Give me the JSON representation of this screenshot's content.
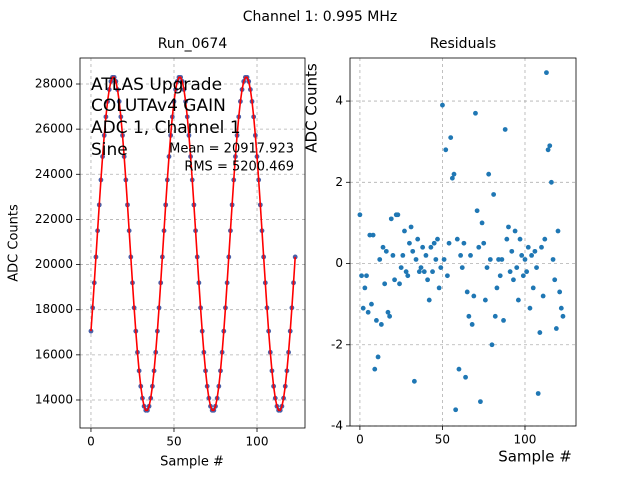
{
  "title": "Channel 1: 0.995 MHz",
  "chart_data": [
    {
      "type": "scatter",
      "title": "Run_0674",
      "x_label": "Sample #",
      "y_label": "ADC Counts",
      "annotations": [
        "ATLAS Upgrade",
        "COLUTAv4 GAIN",
        "ADC 1, Channel 1",
        "Sine",
        "Mean = 20917.923",
        "RMS = 5200.469"
      ],
      "x": [
        0,
        1,
        2,
        3,
        4,
        5,
        6,
        7,
        8,
        9,
        10,
        11,
        12,
        13,
        14,
        15,
        16,
        17,
        18,
        19,
        20,
        21,
        22,
        23,
        24,
        25,
        26,
        27,
        28,
        29,
        30,
        31,
        32,
        33,
        34,
        35,
        36,
        37,
        38,
        39,
        40,
        41,
        42,
        43,
        44,
        45,
        46,
        47,
        48,
        49,
        50,
        51,
        52,
        53,
        54,
        55,
        56,
        57,
        58,
        59,
        60,
        61,
        62,
        63,
        64,
        65,
        66,
        67,
        68,
        69,
        70,
        71,
        72,
        73,
        74,
        75,
        76,
        77,
        78,
        79,
        80,
        81,
        82,
        83,
        84,
        85,
        86,
        87,
        88,
        89,
        90,
        91,
        92,
        93,
        94,
        95,
        96,
        97,
        98,
        99,
        100,
        101,
        102,
        103,
        104,
        105,
        106,
        107,
        108,
        109,
        110,
        111,
        112,
        113,
        114,
        115,
        116,
        117,
        118,
        119,
        120,
        121,
        122,
        123
      ],
      "series": [
        {
          "color": "#4a5fa8",
          "style": "markers",
          "values": [
            17051,
            18086,
            19191,
            20337,
            21499,
            22645,
            23750,
            24785,
            25724,
            26545,
            27227,
            27755,
            28114,
            28295,
            28295,
            28114,
            27755,
            27227,
            26545,
            25724,
            24785,
            23750,
            22645,
            21499,
            20337,
            19191,
            18086,
            17051,
            16112,
            15291,
            14609,
            14081,
            13722,
            13541,
            13541,
            13722,
            14081,
            14609,
            15291,
            16112,
            17051,
            18086,
            19191,
            20337,
            21499,
            22645,
            23750,
            24785,
            25724,
            26545,
            27227,
            27755,
            28114,
            28295,
            28295,
            28114,
            27755,
            27227,
            26545,
            25724,
            24785,
            23750,
            22645,
            21499,
            20337,
            19191,
            18086,
            17051,
            16112,
            15291,
            14609,
            14081,
            13722,
            13541,
            13541,
            13722,
            14081,
            14609,
            15291,
            16112,
            17051,
            18086,
            19191,
            20337,
            21499,
            22645,
            23750,
            24785,
            25724,
            26545,
            27227,
            27755,
            28114,
            28295,
            28295,
            28114,
            27755,
            27227,
            26545,
            25724,
            24785,
            23750,
            22645,
            21499,
            20337,
            19191,
            18086,
            17051,
            16112,
            15291,
            14609,
            14081,
            13722,
            13541,
            13541,
            13722,
            14081,
            14609,
            15291,
            16112,
            17051,
            18086,
            19191,
            20337
          ]
        },
        {
          "color": "red",
          "style": "line",
          "values": [
            17051,
            18086,
            19191,
            20337,
            21499,
            22645,
            23750,
            24785,
            25724,
            26545,
            27227,
            27755,
            28114,
            28295,
            28295,
            28114,
            27755,
            27227,
            26545,
            25724,
            24785,
            23750,
            22645,
            21499,
            20337,
            19191,
            18086,
            17051,
            16112,
            15291,
            14609,
            14081,
            13722,
            13541,
            13541,
            13722,
            14081,
            14609,
            15291,
            16112,
            17051,
            18086,
            19191,
            20337,
            21499,
            22645,
            23750,
            24785,
            25724,
            26545,
            27227,
            27755,
            28114,
            28295,
            28295,
            28114,
            27755,
            27227,
            26545,
            25724,
            24785,
            23750,
            22645,
            21499,
            20337,
            19191,
            18086,
            17051,
            16112,
            15291,
            14609,
            14081,
            13722,
            13541,
            13541,
            13722,
            14081,
            14609,
            15291,
            16112,
            17051,
            18086,
            19191,
            20337,
            21499,
            22645,
            23750,
            24785,
            25724,
            26545,
            27227,
            27755,
            28114,
            28295,
            28295,
            28114,
            27755,
            27227,
            26545,
            25724,
            24785,
            23750,
            22645,
            21499,
            20337,
            19191,
            18086,
            17051,
            16112,
            15291,
            14609,
            14081,
            13722,
            13541,
            13541,
            13722,
            14081,
            14609,
            15291,
            16112,
            17051,
            18086,
            19191,
            20337
          ]
        }
      ],
      "xlim": [
        -6.6,
        128.9
      ],
      "xticks": [
        0,
        50,
        100
      ],
      "ylim": [
        12759,
        29152
      ],
      "yticks": [
        14000,
        16000,
        18000,
        20000,
        22000,
        24000,
        26000,
        28000
      ],
      "grid": true
    },
    {
      "type": "scatter",
      "title": "Residuals",
      "x_label": "Sample #",
      "y_label": "ADC Counts",
      "x": [
        0,
        1,
        2,
        3,
        4,
        5,
        6,
        7,
        8,
        9,
        10,
        11,
        12,
        13,
        14,
        15,
        16,
        17,
        18,
        19,
        20,
        21,
        22,
        23,
        24,
        25,
        26,
        27,
        28,
        29,
        30,
        31,
        32,
        33,
        34,
        35,
        36,
        37,
        38,
        39,
        40,
        41,
        42,
        43,
        44,
        45,
        46,
        47,
        48,
        49,
        50,
        51,
        52,
        53,
        54,
        55,
        56,
        57,
        58,
        59,
        60,
        61,
        62,
        63,
        64,
        65,
        66,
        67,
        68,
        69,
        70,
        71,
        72,
        73,
        74,
        75,
        76,
        77,
        78,
        79,
        80,
        81,
        82,
        83,
        84,
        85,
        86,
        87,
        88,
        89,
        90,
        91,
        92,
        93,
        94,
        95,
        96,
        97,
        98,
        99,
        100,
        101,
        102,
        103,
        104,
        105,
        106,
        107,
        108,
        109,
        110,
        111,
        112,
        113,
        114,
        115,
        116,
        117,
        118,
        119,
        120,
        121,
        122,
        123
      ],
      "series": [
        {
          "color": "#1f77b4",
          "style": "markers",
          "values": [
            1.2,
            -0.3,
            -1.1,
            -0.6,
            -0.3,
            -1.2,
            0.7,
            -1.0,
            0.7,
            -2.6,
            -1.4,
            -2.3,
            0.1,
            -1.5,
            0.4,
            -0.5,
            0.3,
            -1.2,
            -1.3,
            1.1,
            0.2,
            -0.4,
            1.2,
            1.2,
            -0.5,
            -0.1,
            0.2,
            0.8,
            -0.2,
            -0.3,
            0.5,
            0.9,
            0.3,
            -2.9,
            0.1,
            0.6,
            -0.2,
            -0.1,
            0.4,
            -0.2,
            0.2,
            -0.4,
            -0.9,
            0.4,
            -0.2,
            0.5,
            0.1,
            0.6,
            -0.6,
            -0.1,
            3.9,
            0.1,
            2.8,
            -0.3,
            0.5,
            3.1,
            2.1,
            2.2,
            -3.6,
            0.6,
            -2.6,
            0.2,
            -0.1,
            0.5,
            -2.8,
            -0.7,
            -1.3,
            0.2,
            -1.5,
            -0.8,
            3.7,
            1.3,
            0.4,
            -3.4,
            1.0,
            0.5,
            -0.9,
            -0.1,
            2.2,
            0.1,
            -2.0,
            1.7,
            -1.3,
            -0.6,
            0.1,
            -0.3,
            0.1,
            -1.4,
            3.3,
            0.6,
            0.9,
            -0.2,
            0.3,
            -0.4,
            0.8,
            -0.1,
            -0.9,
            0.6,
            0.2,
            -0.3,
            0.1,
            -0.2,
            0.4,
            -1.1,
            0.2,
            -0.6,
            0.3,
            -0.1,
            -3.2,
            -1.7,
            0.4,
            -0.8,
            0.6,
            4.7,
            2.8,
            2.9,
            2.0,
            0.1,
            -0.4,
            -1.6,
            0.8,
            -0.7,
            -1.1,
            -1.3
          ]
        }
      ],
      "xlim": [
        -6,
        130.9
      ],
      "xticks": [
        0,
        50,
        100
      ],
      "ylim": [
        -4,
        5.06
      ],
      "yticks": [
        -4,
        -2,
        0,
        2,
        4
      ],
      "grid": true
    }
  ]
}
